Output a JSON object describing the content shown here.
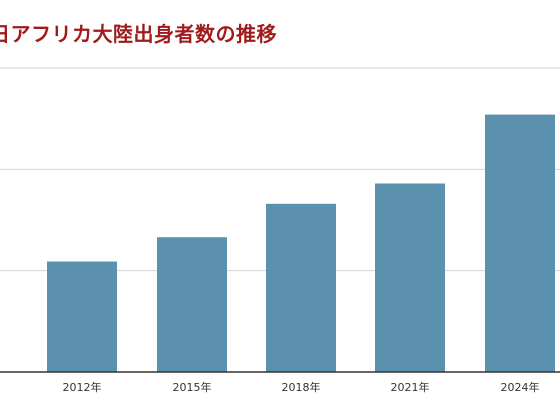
{
  "chart_data": {
    "type": "bar",
    "title": "日アフリカ大陸出身者数の推移",
    "categories": [
      "2012年",
      "2015年",
      "2018年",
      "2021年",
      "2024年"
    ],
    "values": [
      109,
      133,
      166,
      186,
      254
    ],
    "ylim": [
      0,
      300
    ],
    "grid": true,
    "legend": "none",
    "xlabel": "",
    "ylabel": "",
    "colors": {
      "bar": "#5b90ae",
      "title": "#a01b1b",
      "grid": "#d4d4d4",
      "axis": "#333333"
    }
  }
}
